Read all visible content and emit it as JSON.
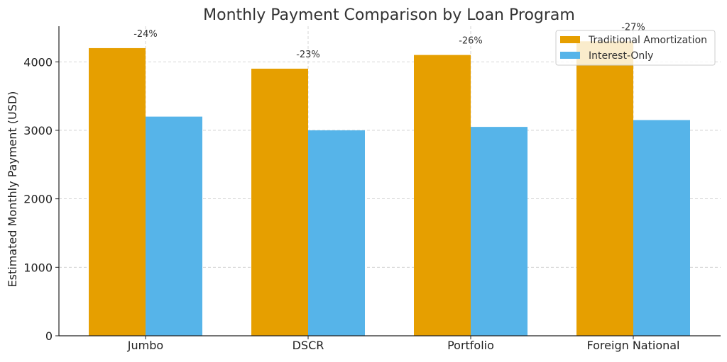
{
  "chart_data": {
    "type": "bar",
    "title": "Monthly Payment Comparison by Loan Program",
    "xlabel": "",
    "ylabel": "Estimated Monthly Payment (USD)",
    "categories": [
      "Jumbo",
      "DSCR",
      "Portfolio",
      "Foreign National"
    ],
    "series": [
      {
        "name": "Traditional Amortization",
        "values": [
          4200,
          3900,
          4100,
          4300
        ],
        "color": "#E69F00"
      },
      {
        "name": "Interest-Only",
        "values": [
          3200,
          3000,
          3050,
          3150
        ],
        "color": "#56B4E9"
      }
    ],
    "annotations": [
      "-24%",
      "-23%",
      "-26%",
      "-27%"
    ],
    "ylim": [
      0,
      4520
    ],
    "yticks": [
      0,
      1000,
      2000,
      3000,
      4000
    ],
    "ytick_labels": [
      "0",
      "1000",
      "2000",
      "3000",
      "4000"
    ],
    "grid": true,
    "legend_position": "top-right"
  }
}
